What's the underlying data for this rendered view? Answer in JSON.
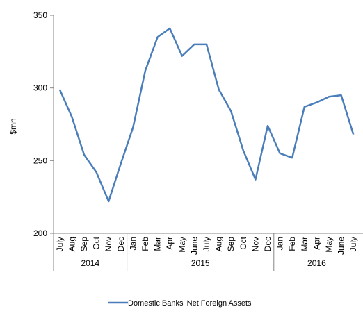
{
  "chart_data": {
    "type": "line",
    "y_label": "$mn",
    "categories": [
      "July",
      "Aug",
      "Sep",
      "Oct",
      "Nov",
      "Dec",
      "Jan",
      "Feb",
      "Mar",
      "Apr",
      "May",
      "June",
      "July",
      "Aug",
      "Sep",
      "Oct",
      "Nov",
      "Dec",
      "Jan",
      "Feb",
      "Mar",
      "Apr",
      "May",
      "June",
      "July"
    ],
    "category_groups": [
      "2014",
      "2014",
      "2014",
      "2014",
      "2014",
      "2014",
      "2015",
      "2015",
      "2015",
      "2015",
      "2015",
      "2015",
      "2015",
      "2015",
      "2015",
      "2015",
      "2015",
      "2015",
      "2016",
      "2016",
      "2016",
      "2016",
      "2016",
      "2016",
      "2016"
    ],
    "series": [
      {
        "name": "Domestic Banks' Net Foreign Assets",
        "color": "#4a7ebb",
        "values": [
          299,
          280,
          254,
          242,
          222,
          248,
          273,
          312,
          335,
          341,
          322,
          330,
          330,
          299,
          284,
          257,
          237,
          274,
          255,
          252,
          287,
          290,
          294,
          295,
          268
        ]
      }
    ],
    "ylim": [
      200,
      350
    ],
    "yticks": [
      200,
      250,
      300,
      350
    ],
    "grid": false,
    "legend": "bottom"
  }
}
